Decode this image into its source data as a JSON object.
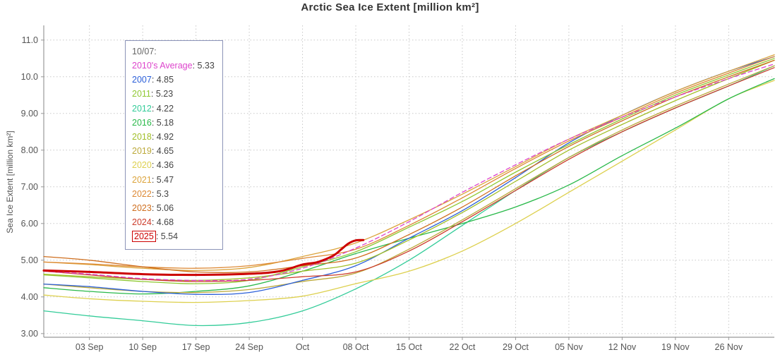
{
  "chart_data": {
    "type": "line",
    "title": "Arctic Sea Ice Extent [million km²]",
    "ylabel": "Sea Ice Extent [million km²]",
    "xlim": [
      -4,
      92
    ],
    "ylim": [
      2.9,
      11.4
    ],
    "grid": "dotted",
    "xticks": [
      {
        "v": 2,
        "label": "03 Sep"
      },
      {
        "v": 9,
        "label": "10 Sep"
      },
      {
        "v": 16,
        "label": "17 Sep"
      },
      {
        "v": 23,
        "label": "24 Sep"
      },
      {
        "v": 30,
        "label": "Oct"
      },
      {
        "v": 37,
        "label": "08 Oct"
      },
      {
        "v": 44,
        "label": "15 Oct"
      },
      {
        "v": 51,
        "label": "22 Oct"
      },
      {
        "v": 58,
        "label": "29 Oct"
      },
      {
        "v": 65,
        "label": "05 Nov"
      },
      {
        "v": 72,
        "label": "12 Nov"
      },
      {
        "v": 79,
        "label": "19 Nov"
      },
      {
        "v": 86,
        "label": "26 Nov"
      }
    ],
    "yticks": [
      {
        "v": 3,
        "label": "3.00"
      },
      {
        "v": 4,
        "label": "4.00"
      },
      {
        "v": 5,
        "label": "5.00"
      },
      {
        "v": 6,
        "label": "6.00"
      },
      {
        "v": 7,
        "label": "7.00"
      },
      {
        "v": 8,
        "label": "8.00"
      },
      {
        "v": 9,
        "label": "9.00"
      },
      {
        "v": 10,
        "label": "10.0"
      },
      {
        "v": 11,
        "label": "11.0"
      }
    ],
    "x_default": [
      -4,
      2,
      9,
      16,
      23,
      30,
      37,
      44,
      51,
      58,
      65,
      72,
      79,
      86,
      92
    ],
    "series": [
      {
        "name": "2012",
        "color": "#33cc99",
        "y": [
          3.62,
          3.48,
          3.35,
          3.22,
          3.3,
          3.62,
          4.22,
          5.0,
          5.95,
          6.9,
          7.8,
          8.5,
          9.15,
          9.75,
          10.3
        ]
      },
      {
        "name": "2020",
        "color": "#ddd04e",
        "y": [
          4.05,
          3.95,
          3.88,
          3.85,
          3.9,
          4.02,
          4.36,
          4.7,
          5.25,
          6.0,
          6.85,
          7.7,
          8.55,
          9.4,
          9.9
        ]
      },
      {
        "name": "2016",
        "color": "#2ab94a",
        "y": [
          4.25,
          4.15,
          4.08,
          4.15,
          4.3,
          4.7,
          5.18,
          5.6,
          6.0,
          6.45,
          7.05,
          7.85,
          8.6,
          9.4,
          9.95
        ]
      },
      {
        "name": "2019",
        "color": "#bca93a",
        "y": [
          4.35,
          4.25,
          4.15,
          4.12,
          4.2,
          4.42,
          4.65,
          5.3,
          6.1,
          6.95,
          7.8,
          8.55,
          9.2,
          9.8,
          10.3
        ]
      },
      {
        "name": "2007",
        "color": "#2b5fd9",
        "y": [
          4.35,
          4.28,
          4.15,
          4.07,
          4.12,
          4.45,
          4.85,
          5.6,
          6.35,
          7.25,
          8.2,
          8.95,
          9.6,
          10.15,
          10.55
        ]
      },
      {
        "name": "2011",
        "color": "#8fc832",
        "y": [
          4.6,
          4.52,
          4.42,
          4.36,
          4.45,
          4.82,
          5.23,
          5.9,
          6.6,
          7.4,
          8.15,
          8.85,
          9.5,
          10.05,
          10.5
        ]
      },
      {
        "name": "2018",
        "color": "#a2bf2a",
        "y": [
          4.62,
          4.55,
          4.48,
          4.45,
          4.52,
          4.7,
          4.92,
          5.55,
          6.3,
          7.15,
          8.0,
          8.7,
          9.35,
          9.95,
          10.45
        ]
      },
      {
        "name": "2021",
        "color": "#dca43c",
        "y": [
          4.95,
          4.88,
          4.78,
          4.72,
          4.8,
          5.1,
          5.47,
          6.1,
          6.8,
          7.55,
          8.3,
          8.95,
          9.6,
          10.15,
          10.6
        ]
      },
      {
        "name": "2022",
        "color": "#dd8833",
        "y": [
          4.95,
          4.9,
          4.82,
          4.78,
          4.85,
          5.05,
          5.3,
          5.95,
          6.7,
          7.5,
          8.25,
          8.9,
          9.55,
          10.1,
          10.55
        ]
      },
      {
        "name": "2023",
        "color": "#cf6f1f",
        "y": [
          5.1,
          5.0,
          4.82,
          4.68,
          4.68,
          4.85,
          5.06,
          5.7,
          6.45,
          7.3,
          8.1,
          8.8,
          9.45,
          10.0,
          10.45
        ]
      },
      {
        "name": "2024",
        "color": "#cc3b2a",
        "y": [
          4.7,
          4.6,
          4.48,
          4.42,
          4.45,
          4.55,
          4.68,
          5.25,
          6.05,
          6.9,
          7.75,
          8.5,
          9.15,
          9.75,
          10.25
        ]
      },
      {
        "name": "2010s-average",
        "color": "#dd44cc",
        "dashed": true,
        "y": [
          4.7,
          4.62,
          4.5,
          4.45,
          4.48,
          4.78,
          5.33,
          6.05,
          6.85,
          7.6,
          8.3,
          8.9,
          9.45,
          9.95,
          10.35
        ]
      },
      {
        "name": "2025",
        "color": "#cc0000",
        "width": 3,
        "x": [
          -4,
          2,
          9,
          16,
          23,
          27,
          30,
          32,
          34,
          35,
          36,
          37,
          38
        ],
        "y": [
          4.72,
          4.68,
          4.62,
          4.6,
          4.63,
          4.7,
          4.88,
          4.95,
          5.12,
          5.28,
          5.45,
          5.54,
          5.55
        ]
      }
    ]
  },
  "legend": {
    "header": "10/07:",
    "entries": [
      {
        "label": "2010's Average",
        "value": "5.33",
        "color": "#dd44cc",
        "boxed": false
      },
      {
        "label": "2007",
        "value": "4.85",
        "color": "#2b5fd9",
        "boxed": false
      },
      {
        "label": "2011",
        "value": "5.23",
        "color": "#8fc832",
        "boxed": false
      },
      {
        "label": "2012",
        "value": "4.22",
        "color": "#33cc99",
        "boxed": false
      },
      {
        "label": "2016",
        "value": "5.18",
        "color": "#2ab94a",
        "boxed": false
      },
      {
        "label": "2018",
        "value": "4.92",
        "color": "#a2bf2a",
        "boxed": false
      },
      {
        "label": "2019",
        "value": "4.65",
        "color": "#bca93a",
        "boxed": false
      },
      {
        "label": "2020",
        "value": "4.36",
        "color": "#ddd04e",
        "boxed": false
      },
      {
        "label": "2021",
        "value": "5.47",
        "color": "#dca43c",
        "boxed": false
      },
      {
        "label": "2022",
        "value": "5.3",
        "color": "#dd8833",
        "boxed": false
      },
      {
        "label": "2023",
        "value": "5.06",
        "color": "#cf6f1f",
        "boxed": false
      },
      {
        "label": "2024",
        "value": "4.68",
        "color": "#cc3b2a",
        "boxed": false
      },
      {
        "label": "2025",
        "value": "5.54",
        "color": "#cc0000",
        "boxed": true
      }
    ]
  },
  "colors": {
    "axis": "#999999",
    "grid": "#c8c8c8",
    "tick_text": "#555555",
    "title_text": "#333333",
    "legend_border": "#8b93b8"
  }
}
